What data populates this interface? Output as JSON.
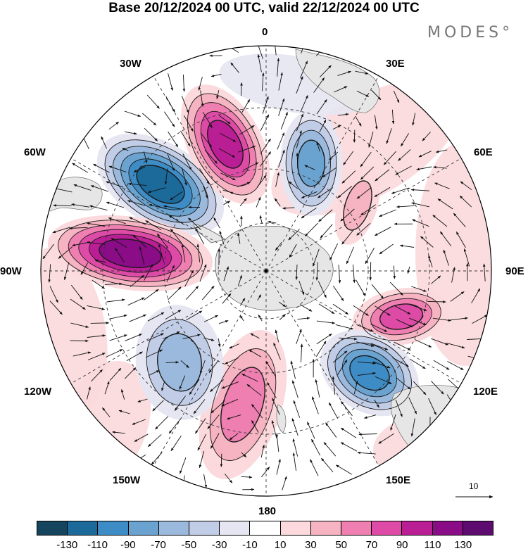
{
  "title": "Base 20/12/2024 00 UTC, valid 22/12/2024 00 UTC",
  "brand": "MODES°",
  "longitude_labels": {
    "lon_0": "0",
    "lon_30E": "30E",
    "lon_60E": "60E",
    "lon_90E": "90E",
    "lon_120E": "120E",
    "lon_150E": "150E",
    "lon_180": "180",
    "lon_150W": "150W",
    "lon_120W": "120W",
    "lon_90W": "90W",
    "lon_60W": "60W",
    "lon_30W": "30W"
  },
  "projection": "south-polar-stereographic",
  "colors": {
    "land": "#e6e6e6",
    "graticule": "#333333",
    "arrows": "#111111"
  },
  "colorbar": {
    "labels": [
      "-130",
      "-110",
      "-90",
      "-70",
      "-50",
      "-30",
      "-10",
      "10",
      "30",
      "50",
      "70",
      "90",
      "110",
      "130"
    ],
    "colors": [
      "#14445e",
      "#1b6a9a",
      "#3d8cc5",
      "#6aa3d0",
      "#9ab9dc",
      "#c1cde6",
      "#e6e6f2",
      "#ffffff",
      "#fbd9dd",
      "#f6b3c2",
      "#ee7fb0",
      "#de4ba6",
      "#ba1e95",
      "#8a0c86",
      "#5e0b6f"
    ]
  },
  "vector_reference": {
    "label": "10",
    "magnitude": 10
  },
  "anomaly_centers": [
    {
      "id": "low-south-atlantic",
      "sign": "negative",
      "peak": -130
    },
    {
      "id": "high-atlantic-0",
      "sign": "positive",
      "peak": 110
    },
    {
      "id": "low-south-africa",
      "sign": "negative",
      "peak": -90
    },
    {
      "id": "high-east-pacific-90w",
      "sign": "positive",
      "peak": 130
    },
    {
      "id": "high-indian-90e",
      "sign": "positive",
      "peak": 90
    },
    {
      "id": "low-south-australia",
      "sign": "negative",
      "peak": -110
    },
    {
      "id": "high-ross-sea",
      "sign": "positive",
      "peak": 70
    },
    {
      "id": "low-pacific-140w",
      "sign": "negative",
      "peak": -70
    },
    {
      "id": "high-indian-60e",
      "sign": "positive",
      "peak": 50
    }
  ]
}
